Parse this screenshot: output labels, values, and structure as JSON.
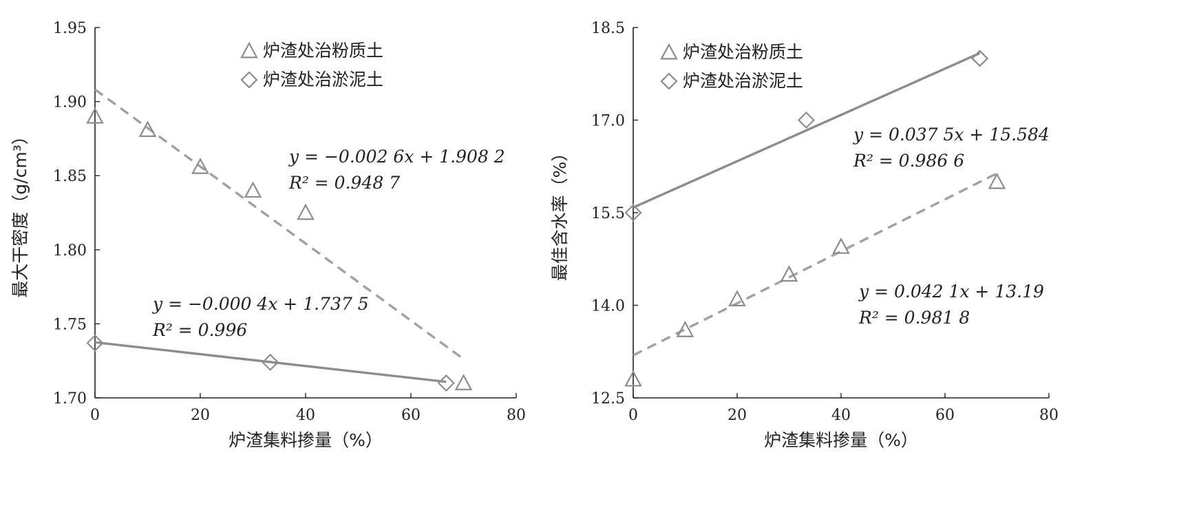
{
  "chart_data": [
    {
      "type": "scatter",
      "xlabel": "炉渣集料掺量（%）",
      "ylabel": "最大干密度（g/cm³）",
      "xlim": [
        0,
        80
      ],
      "ylim": [
        1.7,
        1.95
      ],
      "xticks": [
        "0",
        "20",
        "40",
        "60",
        "80"
      ],
      "yticks": [
        "1.70",
        "1.75",
        "1.80",
        "1.85",
        "1.90",
        "1.95"
      ],
      "grid": false,
      "legend_position": "top-center",
      "series": [
        {
          "name": "炉渣处治粉质土",
          "marker": "triangle",
          "x": [
            0,
            10,
            20,
            30,
            40,
            70
          ],
          "y": [
            1.89,
            1.881,
            1.856,
            1.84,
            1.825,
            1.71
          ],
          "fit": {
            "slope": -0.0026,
            "intercept": 1.9082,
            "x_range": [
              0,
              70
            ],
            "style": "dashed",
            "equation": "y = −0.002 6x + 1.908 2",
            "r2": "R² = 0.948 7"
          }
        },
        {
          "name": "炉渣处治淤泥土",
          "marker": "diamond",
          "x": [
            0,
            33.3,
            66.7
          ],
          "y": [
            1.737,
            1.724,
            1.71
          ],
          "fit": {
            "slope": -0.0004,
            "intercept": 1.7375,
            "x_range": [
              0,
              66.7
            ],
            "style": "solid",
            "equation": "y = −0.000 4x + 1.737 5",
            "r2": "R² = 0.996"
          }
        }
      ]
    },
    {
      "type": "scatter",
      "xlabel": "炉渣集料掺量（%）",
      "ylabel": "最佳含水率（%）",
      "xlim": [
        0,
        80
      ],
      "ylim": [
        12.5,
        18.5
      ],
      "xticks": [
        "0",
        "20",
        "40",
        "60",
        "80"
      ],
      "yticks": [
        "12.5",
        "14.0",
        "15.5",
        "17.0",
        "18.5"
      ],
      "grid": false,
      "legend_position": "top-left",
      "series": [
        {
          "name": "炉渣处治粉质土",
          "marker": "triangle",
          "x": [
            0,
            10,
            20,
            30,
            40,
            70
          ],
          "y": [
            12.8,
            13.6,
            14.1,
            14.5,
            14.95,
            16.0
          ],
          "fit": {
            "slope": 0.0421,
            "intercept": 13.19,
            "x_range": [
              0,
              70
            ],
            "style": "dashed",
            "equation": "y = 0.042 1x + 13.19",
            "r2": "R² = 0.981 8"
          }
        },
        {
          "name": "炉渣处治淤泥土",
          "marker": "diamond",
          "x": [
            0,
            33.3,
            66.7
          ],
          "y": [
            15.5,
            17.0,
            18.0
          ],
          "fit": {
            "slope": 0.0375,
            "intercept": 15.584,
            "x_range": [
              0,
              66.7
            ],
            "style": "solid",
            "equation": "y = 0.037 5x + 15.584",
            "r2": "R² = 0.986 6"
          }
        }
      ]
    }
  ],
  "colors": {
    "axis": "#222222",
    "marker": "#8c8c8c",
    "fit_line": "#8c8c8c",
    "dashed_line": "#a0a0a0"
  }
}
